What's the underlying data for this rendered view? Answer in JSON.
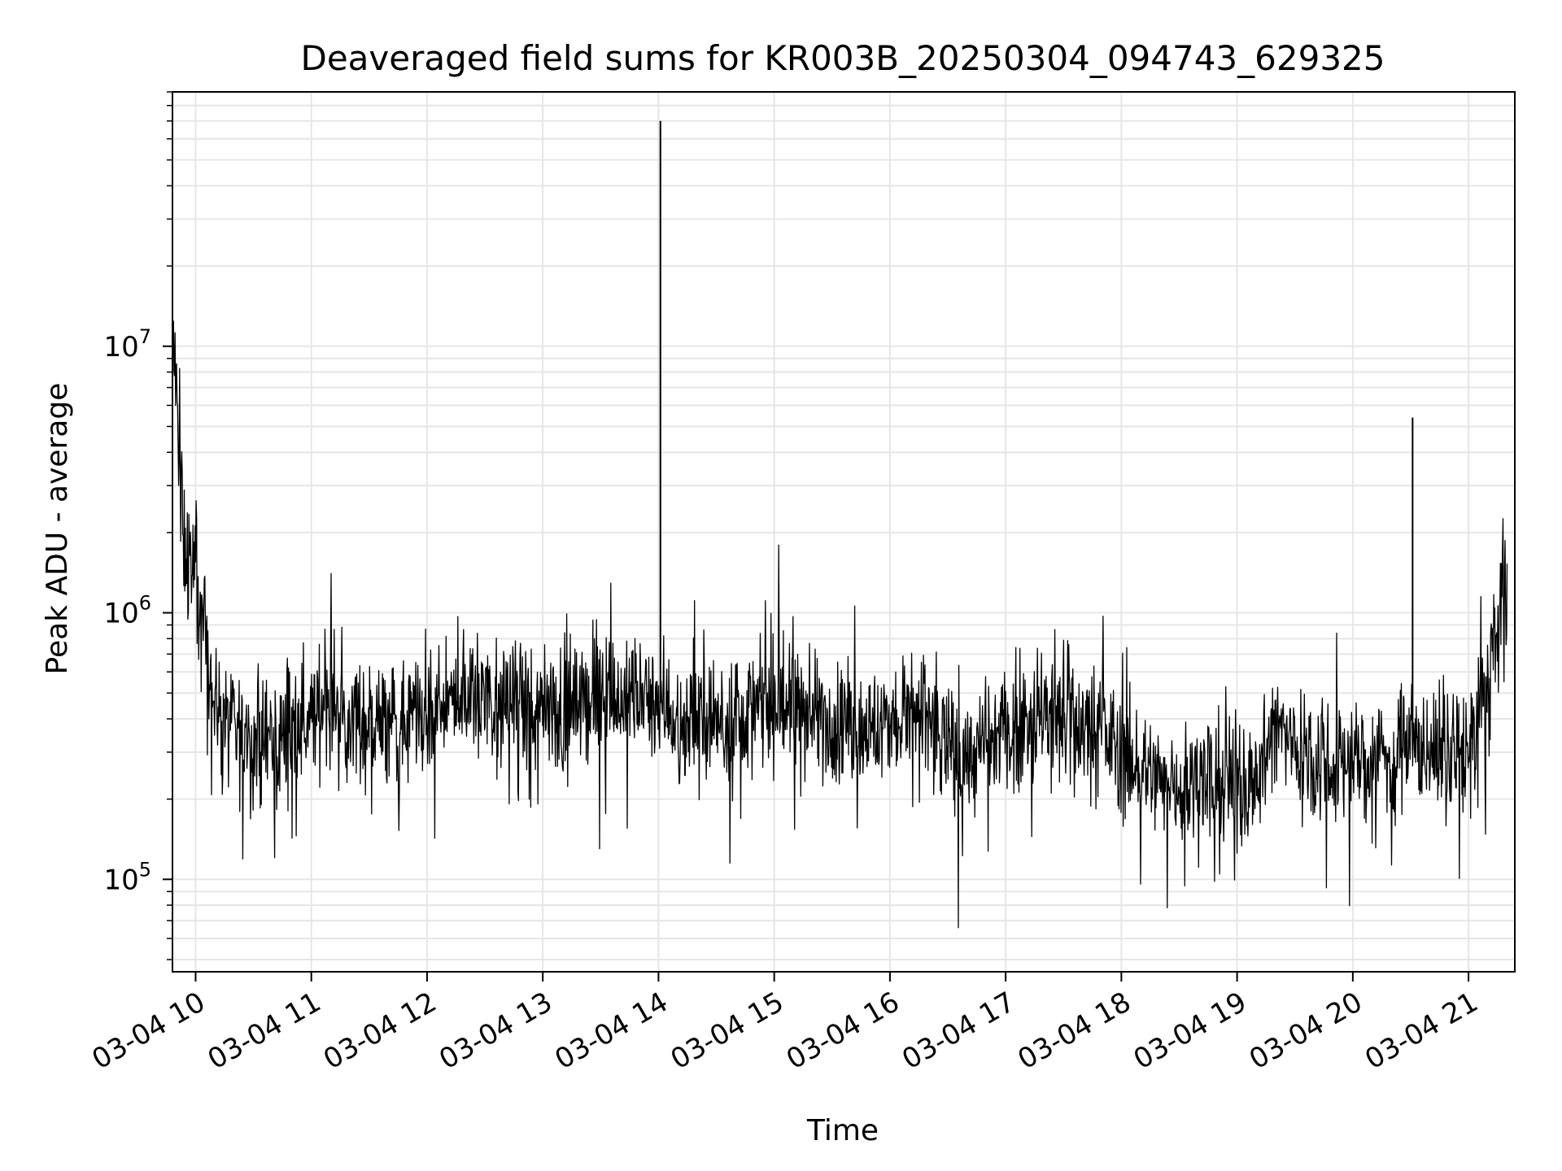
{
  "chart_data": {
    "type": "line",
    "title": "Deaveraged field sums for KR003B_20250304_094743_629325",
    "xlabel": "Time",
    "ylabel": "Peak ADU - average",
    "yscale": "log",
    "ylim": [
      45000,
      90000000
    ],
    "xlim": [
      "2025-03-04T09:48",
      "2025-03-04T21:24"
    ],
    "grid": true,
    "line_color": "#000000",
    "xtick_labels": [
      "03-04 10",
      "03-04 11",
      "03-04 12",
      "03-04 13",
      "03-04 14",
      "03-04 15",
      "03-04 16",
      "03-04 17",
      "03-04 18",
      "03-04 19",
      "03-04 20",
      "03-04 21"
    ],
    "ytick_labels": [
      "10",
      "10",
      "10"
    ],
    "ytick_exponents": [
      "5",
      "6",
      "7"
    ],
    "ytick_values": [
      100000,
      1000000,
      10000000
    ],
    "series": [
      {
        "x": [
          "2025-03-04T09:48",
          "2025-03-04T09:54",
          "2025-03-04T10:00",
          "2025-03-04T10:10",
          "2025-03-04T10:20",
          "2025-03-04T10:30",
          "2025-03-04T10:40",
          "2025-03-04T10:50",
          "2025-03-04T11:00",
          "2025-03-04T11:10",
          "2025-03-04T11:20",
          "2025-03-04T11:30",
          "2025-03-04T11:40",
          "2025-03-04T11:50",
          "2025-03-04T12:00",
          "2025-03-04T12:10",
          "2025-03-04T12:20",
          "2025-03-04T12:30",
          "2025-03-04T12:40",
          "2025-03-04T12:50",
          "2025-03-04T13:00",
          "2025-03-04T13:10",
          "2025-03-04T13:20",
          "2025-03-04T13:30",
          "2025-03-04T13:40",
          "2025-03-04T13:50",
          "2025-03-04T14:00",
          "2025-03-04T14:01",
          "2025-03-04T14:10",
          "2025-03-04T14:20",
          "2025-03-04T14:30",
          "2025-03-04T14:40",
          "2025-03-04T14:50",
          "2025-03-04T15:00",
          "2025-03-04T15:10",
          "2025-03-04T15:20",
          "2025-03-04T15:30",
          "2025-03-04T15:40",
          "2025-03-04T15:50",
          "2025-03-04T16:00",
          "2025-03-04T16:10",
          "2025-03-04T16:20",
          "2025-03-04T16:30",
          "2025-03-04T16:40",
          "2025-03-04T16:50",
          "2025-03-04T17:00",
          "2025-03-04T17:10",
          "2025-03-04T17:20",
          "2025-03-04T17:30",
          "2025-03-04T17:40",
          "2025-03-04T17:50",
          "2025-03-04T18:00",
          "2025-03-04T18:10",
          "2025-03-04T18:20",
          "2025-03-04T18:30",
          "2025-03-04T18:40",
          "2025-03-04T18:50",
          "2025-03-04T19:00",
          "2025-03-04T19:10",
          "2025-03-04T19:20",
          "2025-03-04T19:30",
          "2025-03-04T19:40",
          "2025-03-04T19:50",
          "2025-03-04T20:00",
          "2025-03-04T20:10",
          "2025-03-04T20:20",
          "2025-03-04T20:30",
          "2025-03-04T20:31",
          "2025-03-04T20:40",
          "2025-03-04T20:50",
          "2025-03-04T21:00",
          "2025-03-04T21:10",
          "2025-03-04T21:20"
        ],
        "values": [
          12000000,
          1800000,
          1400000,
          450000,
          350000,
          330000,
          310000,
          380000,
          430000,
          470000,
          430000,
          390000,
          360000,
          380000,
          400000,
          440000,
          500000,
          490000,
          450000,
          420000,
          420000,
          430000,
          480000,
          480000,
          470000,
          470000,
          500000,
          70000000,
          420000,
          380000,
          390000,
          410000,
          430000,
          440000,
          450000,
          420000,
          400000,
          380000,
          360000,
          380000,
          420000,
          380000,
          320000,
          280000,
          310000,
          360000,
          400000,
          420000,
          420000,
          390000,
          360000,
          300000,
          260000,
          240000,
          230000,
          230000,
          230000,
          230000,
          240000,
          380000,
          320000,
          300000,
          270000,
          280000,
          290000,
          300000,
          290000,
          5400000,
          320000,
          290000,
          300000,
          550000,
          1500000
        ]
      }
    ],
    "noise": {
      "log10_amplitude": 0.22,
      "spike_floor_min": 60000
    }
  }
}
